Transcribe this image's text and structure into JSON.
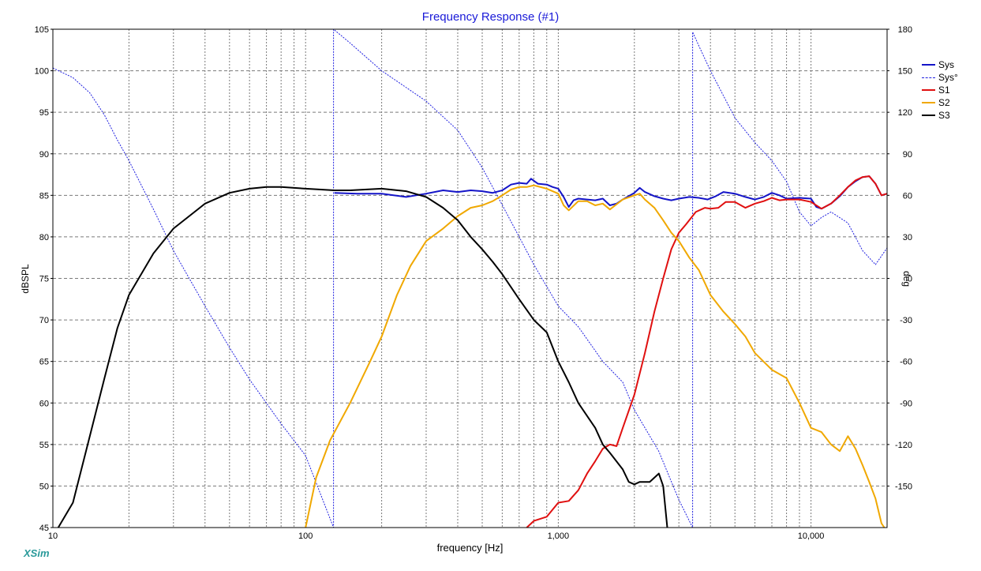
{
  "app": {
    "brand": "XSim"
  },
  "colors": {
    "title": "#1a1ad8",
    "Sys": "#1414c8",
    "Sys_phase": "#2020e0",
    "S1": "#e01010",
    "S2": "#f0a800",
    "S3": "#000000",
    "grid": "#7a7a7a"
  },
  "chart_data": {
    "type": "line",
    "title": "Frequency Response (#1)",
    "xlabel": "frequency [Hz]",
    "ylabel": "dBSPL",
    "y2label": "deg",
    "xscale": "log",
    "xlim": [
      10,
      20000
    ],
    "ylim": [
      45,
      105
    ],
    "y2lim": [
      -180,
      180
    ],
    "x_tick_labels": [
      "10",
      "100",
      "1,000",
      "10,000"
    ],
    "y_tick_labels": [
      "105",
      "100",
      "95",
      "90",
      "85",
      "80",
      "75",
      "70",
      "65",
      "60",
      "55",
      "50",
      "45"
    ],
    "y2_tick_labels": [
      "180",
      "150",
      "120",
      "90",
      "60",
      "30",
      "0",
      "-30",
      "-60",
      "-90",
      "-120",
      "-150"
    ],
    "grid": true,
    "legend_position": "top-right",
    "legend": [
      "Sys",
      "Sys°",
      "S1",
      "S2",
      "S3"
    ],
    "series": [
      {
        "name": "Sys",
        "axis": "left",
        "style": "solid",
        "color": "#1414c8",
        "points": [
          [
            130,
            85.3
          ],
          [
            160,
            85.2
          ],
          [
            200,
            85.2
          ],
          [
            250,
            84.8
          ],
          [
            300,
            85.2
          ],
          [
            350,
            85.6
          ],
          [
            400,
            85.4
          ],
          [
            450,
            85.6
          ],
          [
            500,
            85.5
          ],
          [
            550,
            85.3
          ],
          [
            600,
            85.6
          ],
          [
            650,
            86.3
          ],
          [
            700,
            86.5
          ],
          [
            750,
            86.4
          ],
          [
            780,
            87.0
          ],
          [
            830,
            86.4
          ],
          [
            900,
            86.3
          ],
          [
            950,
            86.0
          ],
          [
            1000,
            85.8
          ],
          [
            1050,
            84.8
          ],
          [
            1100,
            83.6
          ],
          [
            1150,
            84.4
          ],
          [
            1200,
            84.6
          ],
          [
            1300,
            84.5
          ],
          [
            1400,
            84.4
          ],
          [
            1500,
            84.6
          ],
          [
            1600,
            83.8
          ],
          [
            1700,
            84.0
          ],
          [
            1800,
            84.5
          ],
          [
            2000,
            85.3
          ],
          [
            2100,
            85.9
          ],
          [
            2200,
            85.4
          ],
          [
            2400,
            84.9
          ],
          [
            2600,
            84.6
          ],
          [
            2800,
            84.4
          ],
          [
            3000,
            84.6
          ],
          [
            3300,
            84.8
          ],
          [
            3600,
            84.7
          ],
          [
            3900,
            84.5
          ],
          [
            4200,
            84.9
          ],
          [
            4500,
            85.4
          ],
          [
            5000,
            85.2
          ],
          [
            5500,
            84.8
          ],
          [
            6000,
            84.5
          ],
          [
            6500,
            84.8
          ],
          [
            7000,
            85.3
          ],
          [
            7500,
            85.0
          ],
          [
            8000,
            84.6
          ],
          [
            9000,
            84.7
          ],
          [
            10000,
            84.6
          ],
          [
            10500,
            83.6
          ],
          [
            11000,
            83.4
          ],
          [
            12000,
            84.0
          ],
          [
            13000,
            84.9
          ],
          [
            14000,
            86.0
          ],
          [
            15000,
            86.7
          ],
          [
            16000,
            87.2
          ],
          [
            17000,
            87.3
          ],
          [
            18000,
            86.4
          ],
          [
            19000,
            85.0
          ],
          [
            20000,
            85.2
          ]
        ]
      },
      {
        "name": "Sys°",
        "axis": "right",
        "style": "dashed",
        "color": "#2020e0",
        "points": [
          [
            10,
            152
          ],
          [
            12,
            145
          ],
          [
            14,
            134
          ],
          [
            16,
            118
          ],
          [
            18,
            100
          ],
          [
            20,
            85
          ],
          [
            25,
            50
          ],
          [
            30,
            20
          ],
          [
            40,
            -20
          ],
          [
            50,
            -50
          ],
          [
            60,
            -73
          ],
          [
            80,
            -105
          ],
          [
            100,
            -128
          ],
          [
            129,
            -180
          ],
          [
            129,
            180
          ],
          [
            150,
            170
          ],
          [
            200,
            150
          ],
          [
            300,
            128
          ],
          [
            400,
            107
          ],
          [
            500,
            80
          ],
          [
            600,
            53
          ],
          [
            700,
            30
          ],
          [
            800,
            10
          ],
          [
            1000,
            -20
          ],
          [
            1200,
            -35
          ],
          [
            1500,
            -60
          ],
          [
            1800,
            -75
          ],
          [
            2000,
            -95
          ],
          [
            2500,
            -125
          ],
          [
            3000,
            -160
          ],
          [
            3400,
            -180
          ],
          [
            3400,
            178
          ],
          [
            3600,
            168
          ],
          [
            4000,
            150
          ],
          [
            5000,
            116
          ],
          [
            6000,
            98
          ],
          [
            7000,
            85
          ],
          [
            8000,
            70
          ],
          [
            9000,
            48
          ],
          [
            10000,
            38
          ],
          [
            11000,
            44
          ],
          [
            12000,
            48
          ],
          [
            14000,
            40
          ],
          [
            16000,
            20
          ],
          [
            18000,
            10
          ],
          [
            20000,
            22
          ]
        ]
      },
      {
        "name": "S1",
        "axis": "left",
        "style": "solid",
        "color": "#e01010",
        "points": [
          [
            750,
            45
          ],
          [
            800,
            45.8
          ],
          [
            900,
            46.3
          ],
          [
            1000,
            48
          ],
          [
            1100,
            48.2
          ],
          [
            1200,
            49.5
          ],
          [
            1300,
            51.5
          ],
          [
            1400,
            53
          ],
          [
            1500,
            54.5
          ],
          [
            1600,
            55
          ],
          [
            1700,
            54.8
          ],
          [
            1800,
            57
          ],
          [
            2000,
            61
          ],
          [
            2200,
            66
          ],
          [
            2400,
            71
          ],
          [
            2600,
            75
          ],
          [
            2800,
            78.5
          ],
          [
            3000,
            80.5
          ],
          [
            3200,
            81.5
          ],
          [
            3500,
            83
          ],
          [
            3800,
            83.5
          ],
          [
            4000,
            83.4
          ],
          [
            4300,
            83.5
          ],
          [
            4600,
            84.2
          ],
          [
            5000,
            84.2
          ],
          [
            5500,
            83.5
          ],
          [
            6000,
            84
          ],
          [
            6500,
            84.3
          ],
          [
            7000,
            84.7
          ],
          [
            7500,
            84.4
          ],
          [
            8000,
            84.5
          ],
          [
            9000,
            84.5
          ],
          [
            10000,
            84.2
          ],
          [
            11000,
            83.4
          ],
          [
            12000,
            84
          ],
          [
            13000,
            85
          ],
          [
            14000,
            86
          ],
          [
            15000,
            86.8
          ],
          [
            16000,
            87.2
          ],
          [
            17000,
            87.3
          ],
          [
            18000,
            86.4
          ],
          [
            19000,
            85
          ],
          [
            20000,
            85.2
          ]
        ]
      },
      {
        "name": "S2",
        "axis": "left",
        "style": "solid",
        "color": "#f0a800",
        "points": [
          [
            100,
            45
          ],
          [
            110,
            51
          ],
          [
            125,
            55.5
          ],
          [
            150,
            60
          ],
          [
            180,
            65
          ],
          [
            200,
            68
          ],
          [
            230,
            73
          ],
          [
            260,
            76.5
          ],
          [
            300,
            79.5
          ],
          [
            350,
            81
          ],
          [
            400,
            82.5
          ],
          [
            450,
            83.5
          ],
          [
            500,
            83.8
          ],
          [
            550,
            84.3
          ],
          [
            600,
            85
          ],
          [
            650,
            85.7
          ],
          [
            700,
            86
          ],
          [
            750,
            86
          ],
          [
            800,
            86.2
          ],
          [
            900,
            85.8
          ],
          [
            1000,
            85.2
          ],
          [
            1050,
            83.8
          ],
          [
            1100,
            83.2
          ],
          [
            1200,
            84.3
          ],
          [
            1300,
            84.3
          ],
          [
            1400,
            83.8
          ],
          [
            1500,
            84
          ],
          [
            1600,
            83.3
          ],
          [
            1800,
            84.5
          ],
          [
            2000,
            85
          ],
          [
            2100,
            85.2
          ],
          [
            2200,
            84.5
          ],
          [
            2400,
            83.5
          ],
          [
            2600,
            82
          ],
          [
            2800,
            80.5
          ],
          [
            3000,
            79.5
          ],
          [
            3300,
            77.5
          ],
          [
            3600,
            76
          ],
          [
            4000,
            73
          ],
          [
            4500,
            71
          ],
          [
            5000,
            69.5
          ],
          [
            5500,
            68
          ],
          [
            6000,
            66
          ],
          [
            7000,
            64
          ],
          [
            8000,
            63
          ],
          [
            9000,
            60
          ],
          [
            10000,
            57
          ],
          [
            11000,
            56.5
          ],
          [
            12000,
            55
          ],
          [
            13000,
            54.2
          ],
          [
            14000,
            56
          ],
          [
            15000,
            54.5
          ],
          [
            16000,
            52.5
          ],
          [
            17000,
            50.5
          ],
          [
            18000,
            48.5
          ],
          [
            19000,
            45.5
          ],
          [
            19500,
            45
          ]
        ]
      },
      {
        "name": "S3",
        "axis": "left",
        "style": "solid",
        "color": "#000000",
        "points": [
          [
            10.5,
            45
          ],
          [
            12,
            48
          ],
          [
            14,
            56
          ],
          [
            16,
            63
          ],
          [
            18,
            69
          ],
          [
            20,
            73
          ],
          [
            25,
            78
          ],
          [
            30,
            81
          ],
          [
            40,
            84
          ],
          [
            50,
            85.3
          ],
          [
            60,
            85.8
          ],
          [
            70,
            86
          ],
          [
            80,
            86
          ],
          [
            100,
            85.8
          ],
          [
            130,
            85.6
          ],
          [
            150,
            85.6
          ],
          [
            200,
            85.8
          ],
          [
            250,
            85.5
          ],
          [
            300,
            84.8
          ],
          [
            350,
            83.5
          ],
          [
            400,
            82
          ],
          [
            450,
            80
          ],
          [
            500,
            78.5
          ],
          [
            550,
            77
          ],
          [
            600,
            75.5
          ],
          [
            700,
            72.5
          ],
          [
            800,
            70
          ],
          [
            900,
            68.5
          ],
          [
            1000,
            65
          ],
          [
            1100,
            62.5
          ],
          [
            1200,
            60
          ],
          [
            1400,
            57
          ],
          [
            1500,
            55
          ],
          [
            1600,
            54
          ],
          [
            1800,
            52
          ],
          [
            1900,
            50.5
          ],
          [
            2000,
            50.2
          ],
          [
            2100,
            50.5
          ],
          [
            2300,
            50.5
          ],
          [
            2500,
            51.5
          ],
          [
            2600,
            50
          ],
          [
            2700,
            45
          ]
        ]
      }
    ]
  }
}
